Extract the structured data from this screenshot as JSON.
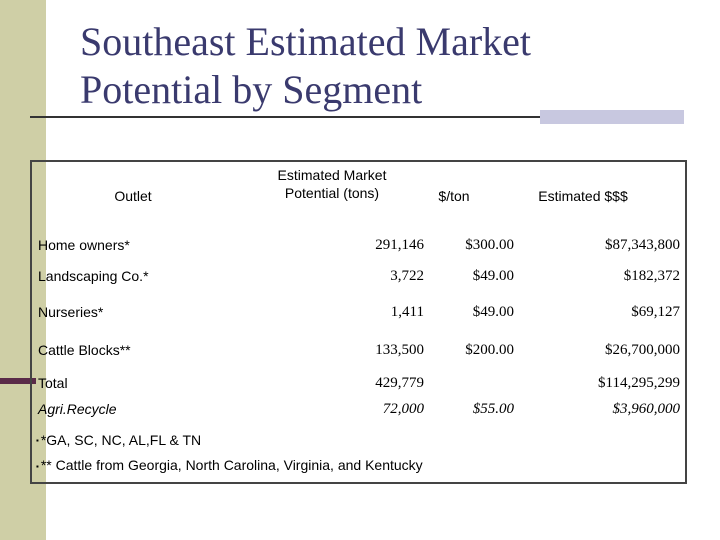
{
  "title": {
    "line1": "Southeast Estimated Market",
    "line2": "Potential by Segment"
  },
  "table": {
    "headers": {
      "outlet": "Outlet",
      "potential_line1": "Estimated Market",
      "potential_line2": "Potential (tons)",
      "per_ton": "$/ton",
      "estimated_dollars": "Estimated $$$"
    },
    "rows": [
      {
        "outlet": "Home owners*",
        "tons": "291,146",
        "per_ton": "$300.00",
        "dollars": "$87,343,800"
      },
      {
        "outlet": "Landscaping Co.*",
        "tons": "3,722",
        "per_ton": "$49.00",
        "dollars": "$182,372"
      },
      {
        "outlet": "Nurseries*",
        "tons": "1,411",
        "per_ton": "$49.00",
        "dollars": "$69,127"
      },
      {
        "outlet": "Cattle Blocks**",
        "tons": "133,500",
        "per_ton": "$200.00",
        "dollars": "$26,700,000"
      },
      {
        "outlet": "Total",
        "tons": "429,779",
        "per_ton": "",
        "dollars": "$114,295,299"
      },
      {
        "outlet": "Agri.Recycle",
        "tons": "72,000",
        "per_ton": "$55.00",
        "dollars": "$3,960,000"
      }
    ]
  },
  "notes": [
    "*GA, SC, NC, AL,FL & TN",
    "** Cattle from Georgia, North Carolina, Virginia, and Kentucky"
  ],
  "colors": {
    "title": "#3a3a6e",
    "left_bar": "#cfcfa6",
    "accent": "#c8c8e0"
  }
}
